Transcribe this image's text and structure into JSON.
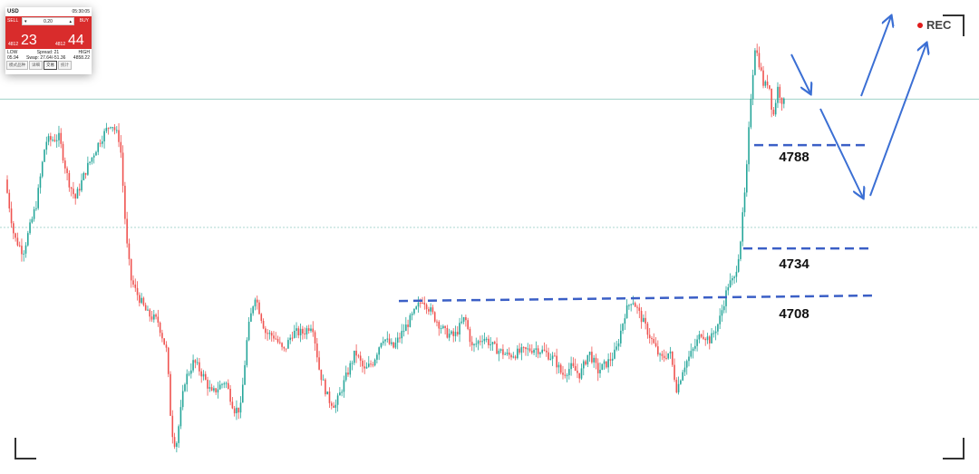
{
  "quote_panel": {
    "symbol": "USD",
    "time": "05:30:05",
    "sell_label": "SELL",
    "buy_label": "BUY",
    "lot": "0.20",
    "bid_small": "4812",
    "bid_big": "23",
    "ask_small": "4812",
    "ask_big": "44",
    "low_label": "LOW",
    "spread_label": "Spread: 21",
    "high_label": "HIGH",
    "low_value": "05.94",
    "swap_label": "Swap: 27.64/-51.36",
    "high_value": "4858.22",
    "tabs": [
      "模式品种",
      "详细",
      "交易",
      "统计"
    ],
    "active_tab": 2,
    "colors": {
      "quote_bg": "#d92c2c",
      "lot_badge": "#7ac142"
    }
  },
  "rec": {
    "label": "REC",
    "dot_color": "#e01b1b"
  },
  "chart_data": {
    "type": "candlestick",
    "title": "",
    "xlabel": "",
    "ylabel": "",
    "y_unit": "price",
    "ylim": [
      4620,
      4860
    ],
    "colors": {
      "up": "#26a69a",
      "down": "#ef5350",
      "levels": "#3b5fc6",
      "arrows": "#3b6fd4",
      "hlines": "#9fd2c8"
    },
    "price_path": [
      [
        0,
        4770
      ],
      [
        10,
        4740
      ],
      [
        20,
        4732
      ],
      [
        35,
        4758
      ],
      [
        45,
        4790
      ],
      [
        60,
        4792
      ],
      [
        70,
        4770
      ],
      [
        78,
        4760
      ],
      [
        90,
        4775
      ],
      [
        105,
        4790
      ],
      [
        118,
        4800
      ],
      [
        128,
        4790
      ],
      [
        135,
        4738
      ],
      [
        140,
        4718
      ],
      [
        145,
        4712
      ],
      [
        158,
        4700
      ],
      [
        170,
        4696
      ],
      [
        180,
        4680
      ],
      [
        185,
        4640
      ],
      [
        190,
        4630
      ],
      [
        200,
        4665
      ],
      [
        210,
        4675
      ],
      [
        220,
        4668
      ],
      [
        230,
        4658
      ],
      [
        245,
        4665
      ],
      [
        255,
        4650
      ],
      [
        262,
        4650
      ],
      [
        270,
        4690
      ],
      [
        278,
        4710
      ],
      [
        290,
        4690
      ],
      [
        300,
        4688
      ],
      [
        310,
        4680
      ],
      [
        320,
        4690
      ],
      [
        332,
        4690
      ],
      [
        342,
        4695
      ],
      [
        350,
        4670
      ],
      [
        360,
        4655
      ],
      [
        368,
        4652
      ],
      [
        378,
        4665
      ],
      [
        390,
        4680
      ],
      [
        400,
        4670
      ],
      [
        410,
        4675
      ],
      [
        420,
        4688
      ],
      [
        432,
        4682
      ],
      [
        442,
        4690
      ],
      [
        455,
        4700
      ],
      [
        465,
        4708
      ],
      [
        478,
        4698
      ],
      [
        490,
        4690
      ],
      [
        500,
        4688
      ],
      [
        512,
        4698
      ],
      [
        520,
        4682
      ],
      [
        532,
        4688
      ],
      [
        545,
        4682
      ],
      [
        560,
        4678
      ],
      [
        575,
        4680
      ],
      [
        590,
        4682
      ],
      [
        600,
        4680
      ],
      [
        612,
        4676
      ],
      [
        620,
        4668
      ],
      [
        630,
        4672
      ],
      [
        640,
        4668
      ],
      [
        650,
        4680
      ],
      [
        660,
        4670
      ],
      [
        672,
        4675
      ],
      [
        680,
        4680
      ],
      [
        690,
        4700
      ],
      [
        698,
        4708
      ],
      [
        708,
        4698
      ],
      [
        718,
        4688
      ],
      [
        730,
        4676
      ],
      [
        740,
        4680
      ],
      [
        748,
        4660
      ],
      [
        755,
        4672
      ],
      [
        765,
        4680
      ],
      [
        775,
        4690
      ],
      [
        785,
        4686
      ],
      [
        795,
        4696
      ],
      [
        805,
        4715
      ],
      [
        812,
        4718
      ],
      [
        818,
        4735
      ],
      [
        825,
        4770
      ],
      [
        830,
        4812
      ],
      [
        835,
        4840
      ],
      [
        840,
        4830
      ],
      [
        845,
        4818
      ],
      [
        850,
        4822
      ],
      [
        855,
        4802
      ],
      [
        860,
        4818
      ],
      [
        866,
        4810
      ]
    ],
    "levels": [
      {
        "price": 4788,
        "label": "4788"
      },
      {
        "price": 4734,
        "label": "4734"
      },
      {
        "price": 4708,
        "label": "4708"
      }
    ],
    "hlines": [
      4812,
      4745
    ]
  }
}
